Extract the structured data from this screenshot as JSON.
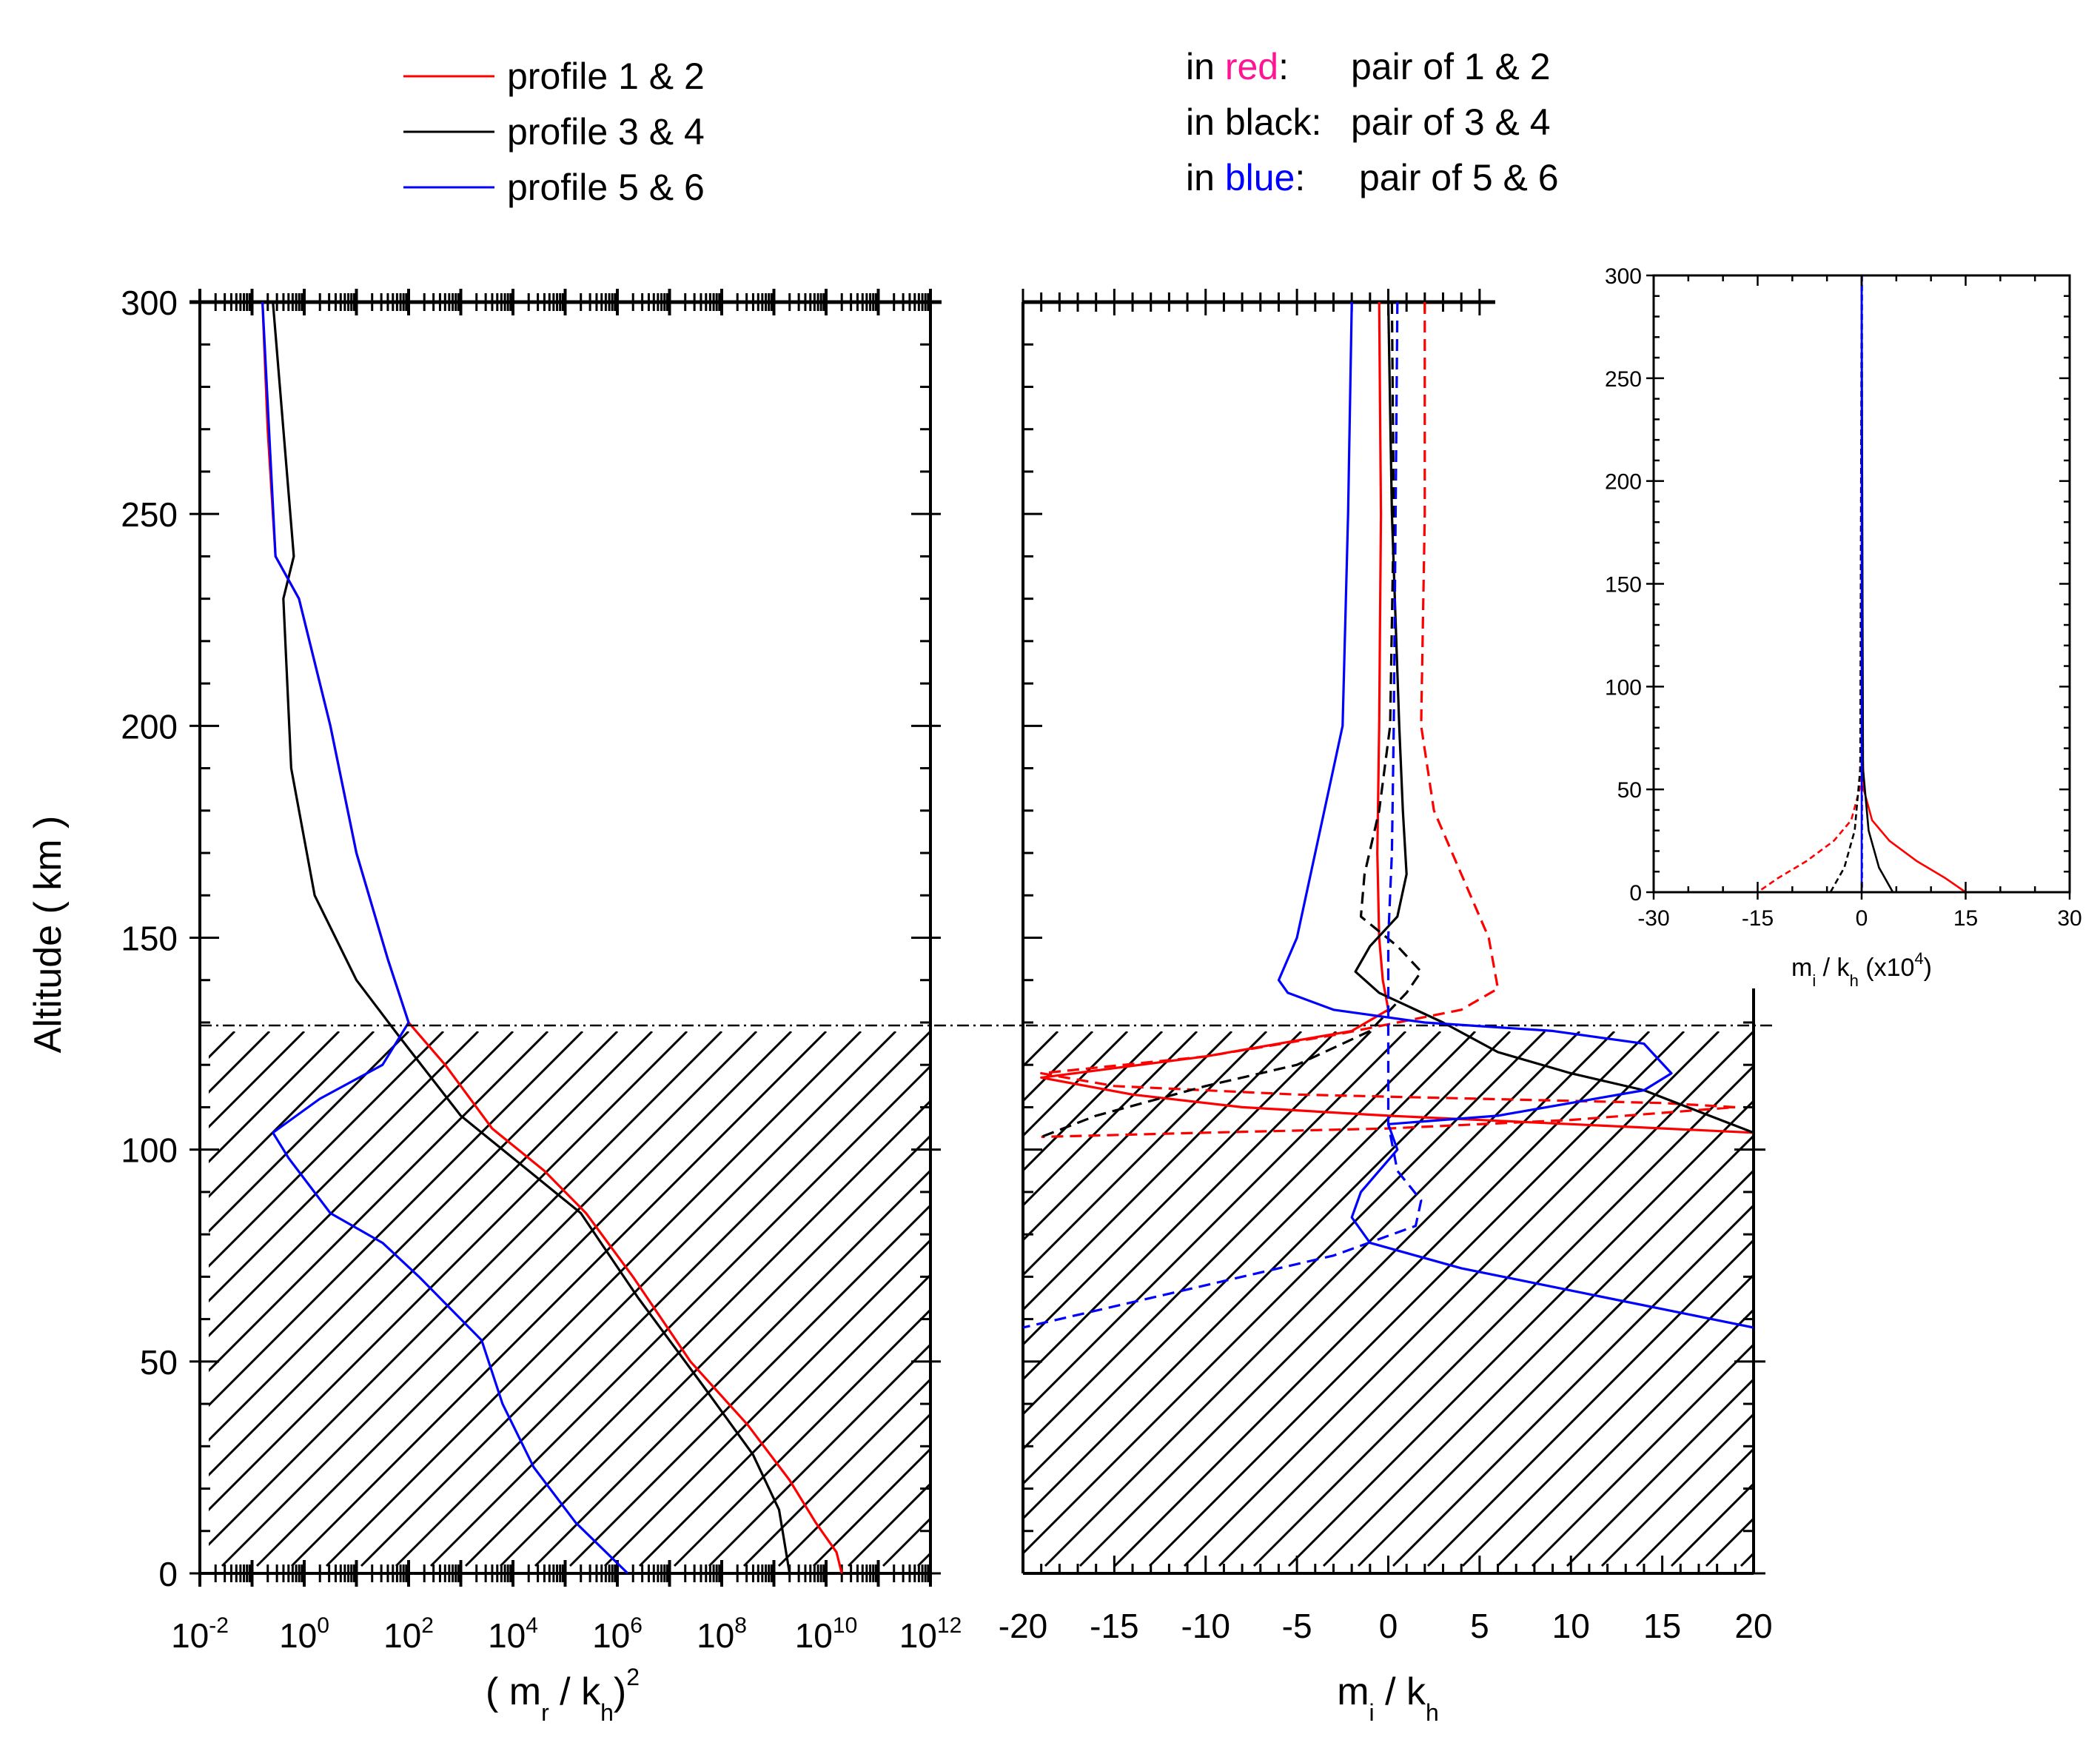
{
  "legend_left": {
    "entries": [
      {
        "label": "profile 1 & 2",
        "color": "#ff0000"
      },
      {
        "label": "profile 3 & 4",
        "color": "#000000"
      },
      {
        "label": "profile 5 & 6",
        "color": "#0000ff"
      }
    ]
  },
  "legend_right": {
    "lines": [
      {
        "prefix": "in ",
        "word": "red",
        "word_color": "#ff1493",
        "suffix": ":",
        "text": "pair of 1 & 2"
      },
      {
        "prefix": "in ",
        "word": "black",
        "word_color": "#000000",
        "suffix": ":",
        "text": "pair of 3 & 4"
      },
      {
        "prefix": "in ",
        "word": "blue",
        "word_color": "#0000ff",
        "suffix": ":",
        "text": "pair of 5 & 6"
      }
    ]
  },
  "colors": {
    "red": "#ff0000",
    "black": "#000000",
    "blue": "#0000ff"
  },
  "chart_data": [
    {
      "id": "left",
      "type": "line",
      "title": "",
      "ylabel": "Altitude ( km )",
      "xlabel": "( m_r / k_h )^2",
      "xscale": "log",
      "xlim_log10": [
        -2,
        12
      ],
      "ylim": [
        0,
        300
      ],
      "yticks": [
        "0",
        "50",
        "100",
        "150",
        "200",
        "250",
        "300"
      ],
      "xtick_exponents": [
        "-2",
        "0",
        "2",
        "4",
        "6",
        "8",
        "10",
        "12"
      ],
      "hatched_region_km": [
        0,
        130
      ],
      "reference_line_km": 130,
      "series": [
        {
          "name": "profile 1 & 2",
          "color": "red",
          "log10_x": [
            -0.8,
            -0.7,
            -0.55,
            -0.1,
            0.5,
            1.0,
            1.6,
            2.0,
            2.7,
            3.6,
            4.6,
            5.4,
            6.3,
            7.4,
            8.5,
            9.3,
            9.8,
            10.2,
            10.3
          ],
          "altitude_km": [
            300,
            270,
            240,
            230,
            200,
            170,
            145,
            130,
            120,
            105,
            95,
            85,
            70,
            50,
            35,
            22,
            12,
            5,
            0
          ]
        },
        {
          "name": "profile 3 & 4",
          "color": "black",
          "log10_x": [
            -0.6,
            -0.4,
            -0.2,
            -0.4,
            -0.25,
            0.2,
            1.0,
            1.8,
            3.0,
            4.3,
            5.3,
            6.4,
            7.6,
            8.6,
            9.1,
            9.3
          ],
          "altitude_km": [
            300,
            270,
            240,
            230,
            190,
            160,
            140,
            127,
            108,
            95,
            85,
            65,
            45,
            28,
            15,
            0
          ]
        },
        {
          "name": "profile 5 & 6",
          "color": "blue",
          "log10_x": [
            -0.8,
            -0.55,
            -0.1,
            0.5,
            1.0,
            1.6,
            2.0,
            1.5,
            0.3,
            -0.6,
            -0.3,
            0.5,
            1.5,
            2.2,
            3.4,
            3.8,
            4.4,
            5.2,
            6.2
          ],
          "altitude_km": [
            300,
            240,
            230,
            200,
            170,
            145,
            130,
            120,
            112,
            104,
            98,
            85,
            78,
            70,
            55,
            40,
            25,
            12,
            0
          ]
        }
      ]
    },
    {
      "id": "middle",
      "type": "line",
      "title": "",
      "xlabel": "m_i / k_h",
      "xlim": [
        -20,
        20
      ],
      "ylim": [
        0,
        300
      ],
      "xticks": [
        "-20",
        "-15",
        "-10",
        "-5",
        "0",
        "5",
        "10",
        "15",
        "20"
      ],
      "hatched_region_km": [
        0,
        130
      ],
      "reference_line_km": 130,
      "series": [
        {
          "name": "red solid",
          "color": "red",
          "dash": false,
          "x": [
            -0.5,
            -0.4,
            -0.5,
            -0.6,
            -0.5,
            -0.3,
            0.0,
            -2.0,
            -10.0,
            -19.0,
            -14.0,
            -8.0,
            0.0,
            10.0,
            20.0
          ],
          "y": [
            300,
            250,
            200,
            170,
            150,
            140,
            133,
            128,
            122,
            117,
            113,
            110,
            108,
            106,
            104
          ]
        },
        {
          "name": "red dashed",
          "color": "red",
          "dash": true,
          "x": [
            2.0,
            2.0,
            1.8,
            2.5,
            4.0,
            5.5,
            6.0,
            4.0,
            0.5,
            -3.0,
            -10.0,
            -19.0,
            -15.0,
            -5.0,
            5.0,
            15.0,
            19.0,
            10.0,
            0.0,
            -10.0,
            -19.0
          ],
          "y": [
            300,
            250,
            200,
            180,
            165,
            150,
            138,
            133,
            130,
            127,
            122,
            118,
            115,
            113,
            112,
            111,
            110,
            107,
            105,
            104,
            103
          ]
        },
        {
          "name": "black solid",
          "color": "black",
          "dash": false,
          "x": [
            0.0,
            0.2,
            0.6,
            0.8,
            1.0,
            0.5,
            -1.0,
            -1.8,
            -0.5,
            3.0,
            6.0,
            10.0,
            14.0,
            17.0,
            20.0
          ],
          "y": [
            300,
            250,
            200,
            180,
            165,
            155,
            148,
            142,
            137,
            130,
            123,
            118,
            114,
            109,
            104
          ]
        },
        {
          "name": "black dashed",
          "color": "black",
          "dash": true,
          "x": [
            0.2,
            0.3,
            0.1,
            -0.5,
            -1.3,
            -1.5,
            0.5,
            1.8,
            1.0,
            -1.0,
            -5.0,
            -10.0,
            -16.0,
            -19.0
          ],
          "y": [
            300,
            250,
            200,
            180,
            165,
            155,
            148,
            142,
            137,
            128,
            120,
            115,
            108,
            103
          ]
        },
        {
          "name": "blue solid",
          "color": "blue",
          "dash": false,
          "x": [
            -2.0,
            -2.2,
            -2.5,
            -3.0,
            -4.0,
            -5.0,
            -6.0,
            -5.5,
            -3.0,
            2.0,
            9.0,
            14.0,
            15.5,
            14.0,
            6.0,
            0.0,
            0.5,
            -1.5,
            -2.0,
            -1.0,
            4.0,
            12.0,
            20.0
          ],
          "y": [
            300,
            250,
            200,
            190,
            170,
            150,
            140,
            137,
            133,
            130,
            128,
            125,
            118,
            114,
            108,
            106,
            100,
            90,
            84,
            78,
            72,
            65,
            58
          ]
        },
        {
          "name": "blue dashed",
          "color": "blue",
          "dash": true,
          "x": [
            0.5,
            0.4,
            0.3,
            0.2,
            0.0,
            0.0,
            0.5,
            1.8,
            1.5,
            -3.0,
            -12.0,
            -20.0
          ],
          "y": [
            300,
            250,
            200,
            170,
            150,
            106,
            95,
            88,
            82,
            75,
            66,
            58
          ]
        }
      ]
    },
    {
      "id": "inset",
      "type": "line",
      "title": "",
      "xlabel": "m_i / k_h",
      "xlabel_suffix": "(x10",
      "xlabel_exponent": "4",
      "xlabel_close": ")",
      "xlim": [
        -30,
        30
      ],
      "ylim": [
        0,
        300
      ],
      "xticks": [
        "-30",
        "-15",
        "0",
        "15",
        "30"
      ],
      "yticks": [
        "0",
        "50",
        "100",
        "150",
        "200",
        "250",
        "300"
      ],
      "series": [
        {
          "name": "red solid",
          "color": "red",
          "dash": false,
          "x": [
            0.0,
            0.05,
            0.3,
            1.5,
            4.0,
            8.0,
            12.0,
            15.0
          ],
          "y": [
            300,
            80,
            50,
            35,
            25,
            15,
            7,
            0
          ]
        },
        {
          "name": "red dashed",
          "color": "red",
          "dash": true,
          "x": [
            0.0,
            -0.05,
            -0.3,
            -1.5,
            -4.0,
            -8.0,
            -12.0,
            -15.0
          ],
          "y": [
            300,
            80,
            50,
            35,
            25,
            15,
            7,
            0
          ]
        },
        {
          "name": "black solid",
          "color": "black",
          "dash": false,
          "x": [
            0.0,
            0.2,
            1.0,
            2.5,
            4.5
          ],
          "y": [
            300,
            60,
            30,
            12,
            0
          ]
        },
        {
          "name": "black dashed",
          "color": "black",
          "dash": true,
          "x": [
            0.0,
            -0.2,
            -1.0,
            -2.5,
            -4.5
          ],
          "y": [
            300,
            60,
            30,
            12,
            0
          ]
        },
        {
          "name": "blue solid",
          "color": "blue",
          "dash": false,
          "x": [
            0.0,
            0.0
          ],
          "y": [
            300,
            0
          ]
        },
        {
          "name": "blue dashed",
          "color": "blue",
          "dash": true,
          "x": [
            0.05,
            0.05
          ],
          "y": [
            300,
            0
          ]
        }
      ]
    }
  ]
}
